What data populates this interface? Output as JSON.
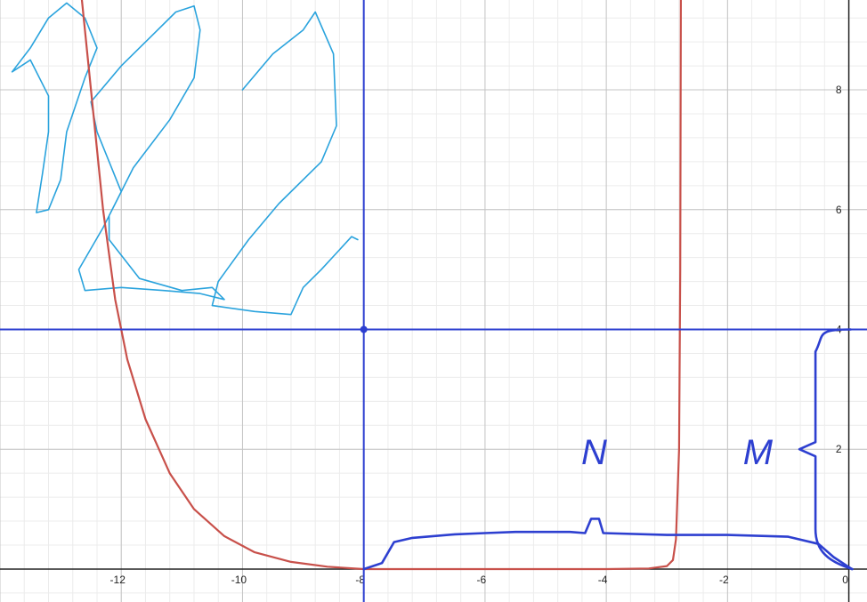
{
  "chart_data": {
    "type": "line",
    "title": "",
    "xlabel": "",
    "ylabel": "",
    "xlim": [
      -14,
      0.3
    ],
    "ylim": [
      -0.55,
      9.5
    ],
    "grid": true,
    "x_ticks": [
      {
        "value": -12,
        "label": "-12"
      },
      {
        "value": -10,
        "label": "-10"
      },
      {
        "value": -8,
        "label": "-8"
      },
      {
        "value": -6,
        "label": "-6"
      },
      {
        "value": -4,
        "label": "-4"
      },
      {
        "value": -2,
        "label": "-2"
      },
      {
        "value": 0,
        "label": "0"
      }
    ],
    "y_ticks": [
      {
        "value": 2,
        "label": "2"
      },
      {
        "value": 4,
        "label": "4"
      },
      {
        "value": 6,
        "label": "6"
      },
      {
        "value": 8,
        "label": "8"
      }
    ],
    "series": [
      {
        "color": "#c8504a",
        "points": [
          [
            -12.65,
            9.5
          ],
          [
            -12.5,
            8.0
          ],
          [
            -12.3,
            6.0
          ],
          [
            -12.1,
            4.5
          ],
          [
            -11.9,
            3.5
          ],
          [
            -11.6,
            2.5
          ],
          [
            -11.2,
            1.6
          ],
          [
            -10.8,
            1.0
          ],
          [
            -10.3,
            0.55
          ],
          [
            -9.8,
            0.28
          ],
          [
            -9.2,
            0.12
          ],
          [
            -8.6,
            0.04
          ],
          [
            -8.0,
            0.0
          ],
          [
            -6.0,
            0.0
          ],
          [
            -4.0,
            0.0
          ],
          [
            -3.3,
            0.01
          ],
          [
            -3.0,
            0.05
          ],
          [
            -2.9,
            0.15
          ],
          [
            -2.85,
            0.5
          ],
          [
            -2.8,
            2.0
          ],
          [
            -2.78,
            5.0
          ],
          [
            -2.77,
            9.5
          ]
        ]
      },
      {
        "color": "#2d3fd0",
        "points": [
          [
            -8.0,
            0.0
          ],
          [
            -7.7,
            0.1
          ],
          [
            -7.5,
            0.45
          ],
          [
            -7.2,
            0.52
          ],
          [
            -6.5,
            0.58
          ],
          [
            -6.0,
            0.6
          ],
          [
            -5.5,
            0.62
          ],
          [
            -4.6,
            0.62
          ],
          [
            -4.35,
            0.6
          ],
          [
            -4.25,
            0.84
          ],
          [
            -4.12,
            0.84
          ],
          [
            -4.05,
            0.6
          ],
          [
            -3.0,
            0.57
          ],
          [
            -2.0,
            0.57
          ],
          [
            -1.0,
            0.54
          ],
          [
            -0.5,
            0.42
          ],
          [
            -0.25,
            0.2
          ],
          [
            0.05,
            0.0
          ]
        ]
      }
    ],
    "vertical_line": {
      "x": -8,
      "color": "#2d3fd0"
    },
    "horizontal_line": {
      "y": 4,
      "color": "#2d3fd0"
    },
    "point": {
      "x": -8,
      "y": 4,
      "color": "#2d3fd0"
    },
    "annotations": [
      {
        "text": "N",
        "x": -4.2,
        "y": 1.75,
        "color": "#2d3fd0"
      },
      {
        "text": "M",
        "x": -1.5,
        "y": 1.75,
        "color": "#2d3fd0"
      }
    ],
    "brace": {
      "x": -0.55,
      "y_from": 0.0,
      "y_to": 4.0,
      "color": "#2d3fd0"
    },
    "scribbles": [
      {
        "color": "#2aa3dd",
        "points": [
          [
            -13.8,
            8.3
          ],
          [
            -13.5,
            8.7
          ],
          [
            -13.2,
            9.2
          ],
          [
            -12.9,
            9.45
          ],
          [
            -12.6,
            9.2
          ],
          [
            -12.4,
            8.7
          ],
          [
            -12.6,
            8.2
          ],
          [
            -12.9,
            7.3
          ],
          [
            -13.0,
            6.5
          ],
          [
            -13.2,
            6.0
          ],
          [
            -13.4,
            5.95
          ],
          [
            -13.3,
            6.6
          ],
          [
            -13.2,
            7.3
          ],
          [
            -13.2,
            7.9
          ],
          [
            -13.5,
            8.5
          ],
          [
            -13.8,
            8.3
          ]
        ]
      },
      {
        "color": "#2aa3dd",
        "points": [
          [
            -12.5,
            7.8
          ],
          [
            -12.0,
            8.4
          ],
          [
            -11.5,
            8.9
          ],
          [
            -11.1,
            9.3
          ],
          [
            -10.8,
            9.4
          ],
          [
            -10.7,
            9.0
          ],
          [
            -10.8,
            8.2
          ],
          [
            -11.2,
            7.5
          ],
          [
            -11.8,
            6.7
          ],
          [
            -12.2,
            5.9
          ],
          [
            -12.2,
            5.5
          ],
          [
            -11.7,
            4.85
          ],
          [
            -11.0,
            4.65
          ],
          [
            -10.5,
            4.7
          ],
          [
            -10.3,
            4.5
          ],
          [
            -10.7,
            4.6
          ],
          [
            -11.3,
            4.65
          ],
          [
            -12.0,
            4.7
          ],
          [
            -12.6,
            4.65
          ],
          [
            -12.7,
            5.0
          ],
          [
            -12.3,
            5.7
          ],
          [
            -12.0,
            6.3
          ],
          [
            -12.4,
            7.3
          ],
          [
            -12.5,
            7.8
          ]
        ]
      },
      {
        "color": "#2aa3dd",
        "points": [
          [
            -10.0,
            8.0
          ],
          [
            -9.5,
            8.6
          ],
          [
            -9.0,
            9.0
          ],
          [
            -8.8,
            9.3
          ],
          [
            -8.5,
            8.6
          ],
          [
            -8.45,
            7.4
          ],
          [
            -8.7,
            6.8
          ],
          [
            -9.4,
            6.1
          ],
          [
            -9.9,
            5.5
          ],
          [
            -10.4,
            4.8
          ],
          [
            -10.5,
            4.4
          ],
          [
            -9.8,
            4.3
          ],
          [
            -9.2,
            4.25
          ],
          [
            -9.0,
            4.7
          ],
          [
            -8.7,
            5.0
          ],
          [
            -8.2,
            5.55
          ],
          [
            -8.1,
            5.5
          ]
        ]
      }
    ]
  }
}
